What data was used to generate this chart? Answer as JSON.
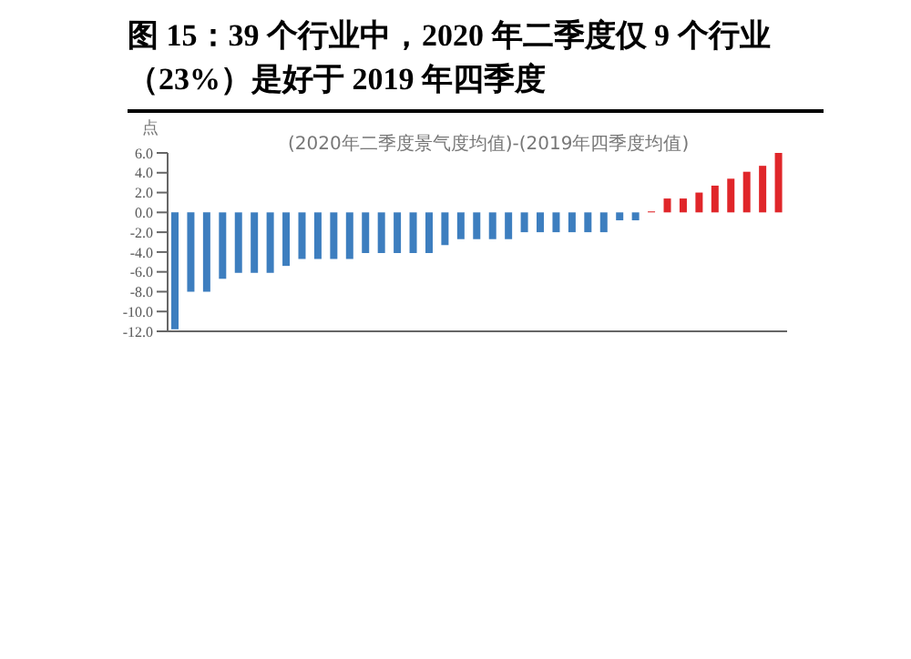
{
  "chart_data": {
    "type": "bar",
    "title": "图 15：39 个行业中，2020 年二季度仅 9 个行业（23%）是好于 2019 年四季度",
    "subtitle": "(2020年二季度景气度均值)-(2019年四季度均值)",
    "ylabel": "点",
    "categories": [
      null,
      null,
      null,
      null,
      null,
      null,
      null,
      null,
      null,
      null,
      null,
      null,
      null,
      null,
      null,
      null,
      null,
      null,
      null,
      null,
      null,
      null,
      null,
      null,
      null,
      null,
      null,
      null,
      null,
      null,
      null,
      null,
      null,
      null,
      null,
      null,
      null,
      null,
      null
    ],
    "values": [
      -11.8,
      -8.0,
      -8.0,
      -6.7,
      -6.1,
      -6.1,
      -6.1,
      -5.4,
      -4.7,
      -4.7,
      -4.7,
      -4.7,
      -4.1,
      -4.1,
      -4.1,
      -4.1,
      -4.1,
      -3.3,
      -2.7,
      -2.7,
      -2.7,
      -2.7,
      -2.0,
      -2.0,
      -2.0,
      -2.0,
      -2.0,
      -2.0,
      -0.8,
      -0.8,
      0.1,
      1.4,
      1.4,
      2.0,
      2.7,
      3.4,
      4.1,
      4.7,
      6.0
    ],
    "colors": [
      "#3d7ebf",
      "#3d7ebf",
      "#3d7ebf",
      "#3d7ebf",
      "#3d7ebf",
      "#3d7ebf",
      "#3d7ebf",
      "#3d7ebf",
      "#3d7ebf",
      "#3d7ebf",
      "#3d7ebf",
      "#3d7ebf",
      "#3d7ebf",
      "#3d7ebf",
      "#3d7ebf",
      "#3d7ebf",
      "#3d7ebf",
      "#3d7ebf",
      "#3d7ebf",
      "#3d7ebf",
      "#3d7ebf",
      "#3d7ebf",
      "#3d7ebf",
      "#3d7ebf",
      "#3d7ebf",
      "#3d7ebf",
      "#3d7ebf",
      "#3d7ebf",
      "#3d7ebf",
      "#3d7ebf",
      "#e0262a",
      "#e0262a",
      "#e0262a",
      "#e0262a",
      "#e0262a",
      "#e0262a",
      "#e0262a",
      "#e0262a",
      "#e0262a"
    ],
    "ylim": [
      -12,
      6
    ],
    "yticks": [
      {
        "value": -12,
        "label": "-12.0"
      },
      {
        "value": -10,
        "label": "-10.0"
      },
      {
        "value": -8,
        "label": "-8.0"
      },
      {
        "value": -6,
        "label": "-6.0"
      },
      {
        "value": -4,
        "label": "-4.0"
      },
      {
        "value": -2,
        "label": "-2.0"
      },
      {
        "value": 0,
        "label": "0.0"
      },
      {
        "value": 2,
        "label": "2.0"
      },
      {
        "value": 4,
        "label": "4.0"
      },
      {
        "value": 6,
        "label": "6.0"
      }
    ],
    "grid": false,
    "legend": false
  }
}
